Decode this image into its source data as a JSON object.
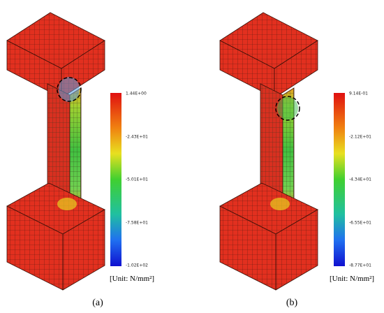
{
  "panels": [
    {
      "label": "(a)",
      "colorbar": {
        "ticks": [
          "1.44E+00",
          "-2.43E+01",
          "-5.01E+01",
          "-7.58E+01",
          "-1.02E+02"
        ],
        "unit": "[Unit: N/mm²]"
      }
    },
    {
      "label": "(b)",
      "colorbar": {
        "ticks": [
          "9.14E-01",
          "-2.12E+01",
          "-4.34E+01",
          "-6.55E+01",
          "-8.77E+01"
        ],
        "unit": "[Unit: N/mm²]"
      }
    }
  ]
}
